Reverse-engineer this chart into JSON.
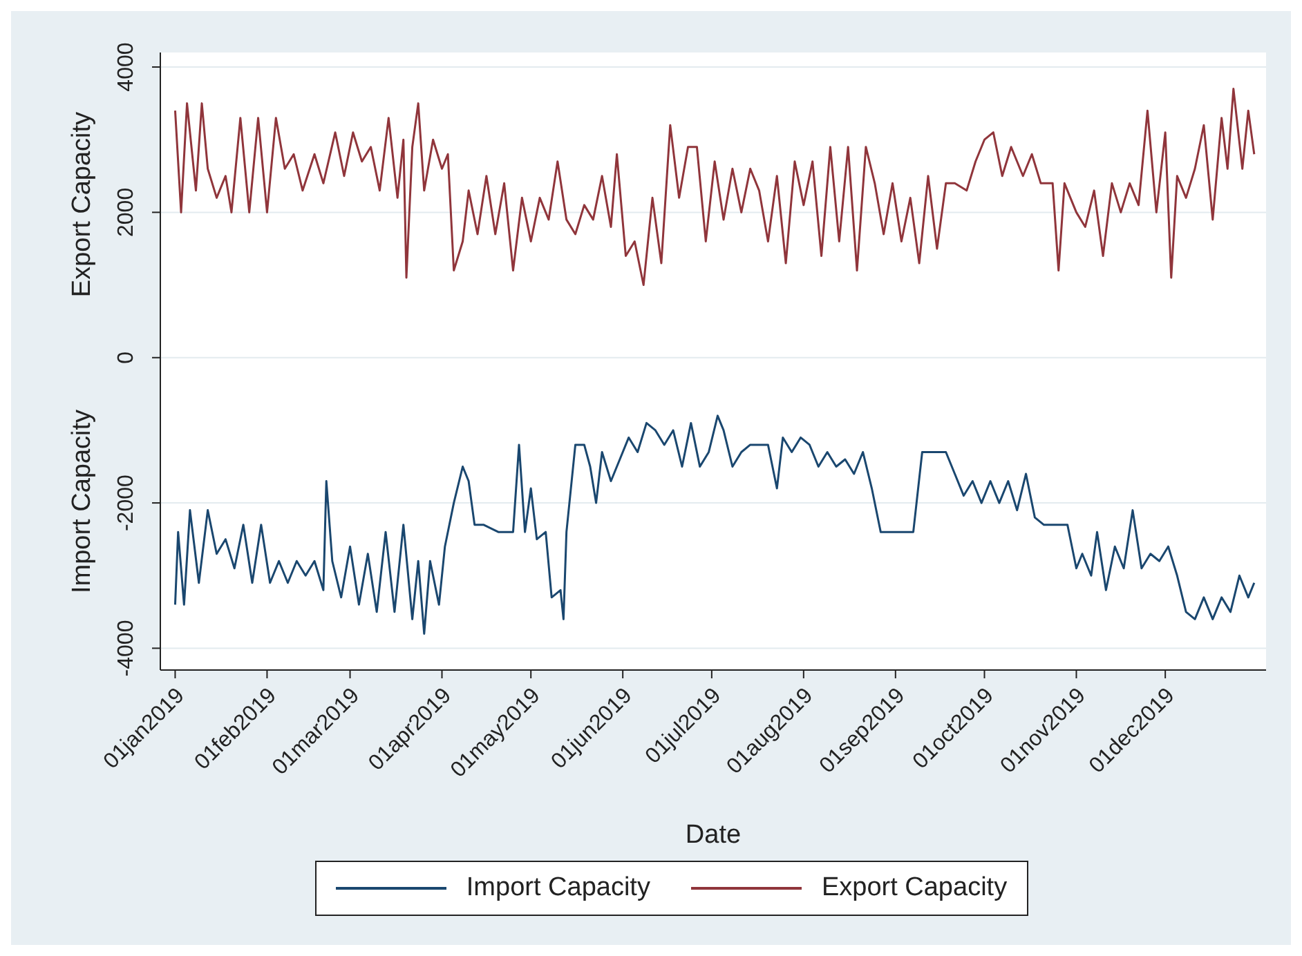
{
  "chart_data": {
    "type": "line",
    "xlabel": "Date",
    "annotations": [
      "Export Capacity",
      "Import Capacity"
    ],
    "xlim": [
      "2018-12-27",
      "2020-01-04"
    ],
    "xticks": [
      {
        "value": "2019-01-01",
        "label": "01jan2019"
      },
      {
        "value": "2019-02-01",
        "label": "01feb2019"
      },
      {
        "value": "2019-03-01",
        "label": "01mar2019"
      },
      {
        "value": "2019-04-01",
        "label": "01apr2019"
      },
      {
        "value": "2019-05-01",
        "label": "01may2019"
      },
      {
        "value": "2019-06-01",
        "label": "01jun2019"
      },
      {
        "value": "2019-07-01",
        "label": "01jul2019"
      },
      {
        "value": "2019-08-01",
        "label": "01aug2019"
      },
      {
        "value": "2019-09-01",
        "label": "01sep2019"
      },
      {
        "value": "2019-10-01",
        "label": "01oct2019"
      },
      {
        "value": "2019-11-01",
        "label": "01nov2019"
      },
      {
        "value": "2019-12-01",
        "label": "01dec2019"
      }
    ],
    "ylim": [
      -4300,
      4200
    ],
    "yticks": [
      -4000,
      -2000,
      0,
      2000,
      4000
    ],
    "grid": "y",
    "legend": "bottom",
    "series": [
      {
        "name": "Import Capacity",
        "color": "#1a476f",
        "x": [
          "2019-01-01",
          "2019-01-02",
          "2019-01-04",
          "2019-01-06",
          "2019-01-09",
          "2019-01-12",
          "2019-01-15",
          "2019-01-18",
          "2019-01-21",
          "2019-01-24",
          "2019-01-27",
          "2019-01-30",
          "2019-02-02",
          "2019-02-05",
          "2019-02-08",
          "2019-02-11",
          "2019-02-14",
          "2019-02-17",
          "2019-02-20",
          "2019-02-21",
          "2019-02-23",
          "2019-02-26",
          "2019-03-01",
          "2019-03-04",
          "2019-03-07",
          "2019-03-10",
          "2019-03-13",
          "2019-03-16",
          "2019-03-19",
          "2019-03-22",
          "2019-03-24",
          "2019-03-26",
          "2019-03-28",
          "2019-03-31",
          "2019-04-02",
          "2019-04-05",
          "2019-04-08",
          "2019-04-10",
          "2019-04-12",
          "2019-04-15",
          "2019-04-20",
          "2019-04-25",
          "2019-04-27",
          "2019-04-29",
          "2019-05-01",
          "2019-05-03",
          "2019-05-06",
          "2019-05-08",
          "2019-05-11",
          "2019-05-12",
          "2019-05-13",
          "2019-05-16",
          "2019-05-19",
          "2019-05-21",
          "2019-05-23",
          "2019-05-25",
          "2019-05-28",
          "2019-05-31",
          "2019-06-03",
          "2019-06-06",
          "2019-06-09",
          "2019-06-12",
          "2019-06-15",
          "2019-06-18",
          "2019-06-21",
          "2019-06-24",
          "2019-06-27",
          "2019-06-30",
          "2019-07-03",
          "2019-07-05",
          "2019-07-08",
          "2019-07-11",
          "2019-07-14",
          "2019-07-20",
          "2019-07-23",
          "2019-07-25",
          "2019-07-28",
          "2019-07-31",
          "2019-08-03",
          "2019-08-06",
          "2019-08-09",
          "2019-08-12",
          "2019-08-15",
          "2019-08-18",
          "2019-08-21",
          "2019-08-24",
          "2019-08-27",
          "2019-09-02",
          "2019-09-07",
          "2019-09-10",
          "2019-09-15",
          "2019-09-18",
          "2019-09-21",
          "2019-09-24",
          "2019-09-27",
          "2019-09-30",
          "2019-10-03",
          "2019-10-06",
          "2019-10-09",
          "2019-10-12",
          "2019-10-15",
          "2019-10-18",
          "2019-10-21",
          "2019-10-25",
          "2019-10-29",
          "2019-11-01",
          "2019-11-03",
          "2019-11-06",
          "2019-11-08",
          "2019-11-11",
          "2019-11-14",
          "2019-11-17",
          "2019-11-20",
          "2019-11-23",
          "2019-11-26",
          "2019-11-29",
          "2019-12-02",
          "2019-12-05",
          "2019-12-08",
          "2019-12-11",
          "2019-12-14",
          "2019-12-17",
          "2019-12-20",
          "2019-12-23",
          "2019-12-26",
          "2019-12-29",
          "2019-12-31"
        ],
        "values": [
          -3400,
          -2400,
          -3400,
          -2100,
          -3100,
          -2100,
          -2700,
          -2500,
          -2900,
          -2300,
          -3100,
          -2300,
          -3100,
          -2800,
          -3100,
          -2800,
          -3000,
          -2800,
          -3200,
          -1700,
          -2800,
          -3300,
          -2600,
          -3400,
          -2700,
          -3500,
          -2400,
          -3500,
          -2300,
          -3600,
          -2800,
          -3800,
          -2800,
          -3400,
          -2600,
          -2000,
          -1500,
          -1700,
          -2300,
          -2300,
          -2400,
          -2400,
          -1200,
          -2400,
          -1800,
          -2500,
          -2400,
          -3300,
          -3200,
          -3600,
          -2400,
          -1200,
          -1200,
          -1500,
          -2000,
          -1300,
          -1700,
          -1400,
          -1100,
          -1300,
          -900,
          -1000,
          -1200,
          -1000,
          -1500,
          -900,
          -1500,
          -1300,
          -800,
          -1000,
          -1500,
          -1300,
          -1200,
          -1200,
          -1800,
          -1100,
          -1300,
          -1100,
          -1200,
          -1500,
          -1300,
          -1500,
          -1400,
          -1600,
          -1300,
          -1800,
          -2400,
          -2400,
          -2400,
          -1300,
          -1300,
          -1300,
          -1600,
          -1900,
          -1700,
          -2000,
          -1700,
          -2000,
          -1700,
          -2100,
          -1600,
          -2200,
          -2300,
          -2300,
          -2300,
          -2900,
          -2700,
          -3000,
          -2400,
          -3200,
          -2600,
          -2900,
          -2100,
          -2900,
          -2700,
          -2800,
          -2600,
          -3000,
          -3500,
          -3600,
          -3300,
          -3600,
          -3300,
          -3500,
          -3000,
          -3300,
          -3100
        ]
      },
      {
        "name": "Export Capacity",
        "color": "#90353b",
        "x": [
          "2019-01-01",
          "2019-01-03",
          "2019-01-05",
          "2019-01-08",
          "2019-01-10",
          "2019-01-12",
          "2019-01-15",
          "2019-01-18",
          "2019-01-20",
          "2019-01-23",
          "2019-01-26",
          "2019-01-29",
          "2019-02-01",
          "2019-02-04",
          "2019-02-07",
          "2019-02-10",
          "2019-02-13",
          "2019-02-17",
          "2019-02-20",
          "2019-02-24",
          "2019-02-27",
          "2019-03-02",
          "2019-03-05",
          "2019-03-08",
          "2019-03-11",
          "2019-03-14",
          "2019-03-17",
          "2019-03-19",
          "2019-03-20",
          "2019-03-22",
          "2019-03-24",
          "2019-03-26",
          "2019-03-29",
          "2019-04-01",
          "2019-04-03",
          "2019-04-05",
          "2019-04-08",
          "2019-04-10",
          "2019-04-13",
          "2019-04-16",
          "2019-04-19",
          "2019-04-22",
          "2019-04-25",
          "2019-04-28",
          "2019-05-01",
          "2019-05-04",
          "2019-05-07",
          "2019-05-10",
          "2019-05-13",
          "2019-05-16",
          "2019-05-19",
          "2019-05-22",
          "2019-05-25",
          "2019-05-28",
          "2019-05-30",
          "2019-06-02",
          "2019-06-05",
          "2019-06-08",
          "2019-06-11",
          "2019-06-14",
          "2019-06-17",
          "2019-06-20",
          "2019-06-23",
          "2019-06-26",
          "2019-06-29",
          "2019-07-02",
          "2019-07-05",
          "2019-07-08",
          "2019-07-11",
          "2019-07-14",
          "2019-07-17",
          "2019-07-20",
          "2019-07-23",
          "2019-07-26",
          "2019-07-29",
          "2019-08-01",
          "2019-08-04",
          "2019-08-07",
          "2019-08-10",
          "2019-08-13",
          "2019-08-16",
          "2019-08-19",
          "2019-08-22",
          "2019-08-25",
          "2019-08-28",
          "2019-08-31",
          "2019-09-03",
          "2019-09-06",
          "2019-09-09",
          "2019-09-12",
          "2019-09-15",
          "2019-09-18",
          "2019-09-21",
          "2019-09-25",
          "2019-09-28",
          "2019-10-01",
          "2019-10-04",
          "2019-10-07",
          "2019-10-10",
          "2019-10-14",
          "2019-10-17",
          "2019-10-20",
          "2019-10-24",
          "2019-10-26",
          "2019-10-28",
          "2019-11-01",
          "2019-11-04",
          "2019-11-07",
          "2019-11-10",
          "2019-11-13",
          "2019-11-16",
          "2019-11-19",
          "2019-11-22",
          "2019-11-25",
          "2019-11-28",
          "2019-12-01",
          "2019-12-03",
          "2019-12-05",
          "2019-12-08",
          "2019-12-11",
          "2019-12-14",
          "2019-12-17",
          "2019-12-20",
          "2019-12-22",
          "2019-12-24",
          "2019-12-27",
          "2019-12-29",
          "2019-12-31"
        ],
        "values": [
          3400,
          2000,
          3500,
          2300,
          3500,
          2600,
          2200,
          2500,
          2000,
          3300,
          2000,
          3300,
          2000,
          3300,
          2600,
          2800,
          2300,
          2800,
          2400,
          3100,
          2500,
          3100,
          2700,
          2900,
          2300,
          3300,
          2200,
          3000,
          1100,
          2900,
          3500,
          2300,
          3000,
          2600,
          2800,
          1200,
          1600,
          2300,
          1700,
          2500,
          1700,
          2400,
          1200,
          2200,
          1600,
          2200,
          1900,
          2700,
          1900,
          1700,
          2100,
          1900,
          2500,
          1800,
          2800,
          1400,
          1600,
          1000,
          2200,
          1300,
          3200,
          2200,
          2900,
          2900,
          1600,
          2700,
          1900,
          2600,
          2000,
          2600,
          2300,
          1600,
          2500,
          1300,
          2700,
          2100,
          2700,
          1400,
          2900,
          1600,
          2900,
          1200,
          2900,
          2400,
          1700,
          2400,
          1600,
          2200,
          1300,
          2500,
          1500,
          2400,
          2400,
          2300,
          2700,
          3000,
          3100,
          2500,
          2900,
          2500,
          2800,
          2400,
          2400,
          1200,
          2400,
          2000,
          1800,
          2300,
          1400,
          2400,
          2000,
          2400,
          2100,
          3400,
          2000,
          3100,
          1100,
          2500,
          2200,
          2600,
          3200,
          1900,
          3300,
          2600,
          3700,
          2600,
          3400,
          2800
        ]
      }
    ]
  }
}
